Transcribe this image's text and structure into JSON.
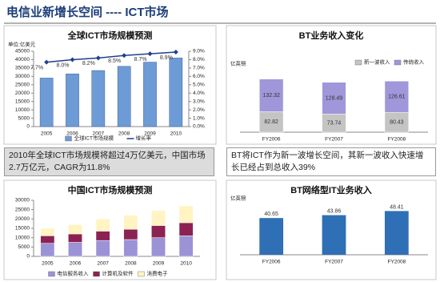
{
  "header": {
    "title": "电信业新增长空间 ---- ICT市场"
  },
  "notes": [
    "2010年全球ICT市场规模将超过4万亿美元，中国市场2.7万亿元，CAGR为11.8%",
    "BT将ICT作为新一波增长空间，其新一波收入快速增长已经占到总收入39%"
  ],
  "chart_data": [
    {
      "type": "combo",
      "title": "全球ICT市场规模预测",
      "y_label": "单位:亿美元",
      "categories": [
        "2005",
        "2006",
        "2007",
        "2008",
        "2009",
        "2010"
      ],
      "series": [
        {
          "name": "全球ICT市场规模",
          "color": "#6d9bd6",
          "values": [
            29000,
            31500,
            33500,
            36000,
            38500,
            41000
          ]
        },
        {
          "name": "增长率",
          "color": "#1f3f8f",
          "axis": "y2",
          "values": [
            7.7,
            8.0,
            8.2,
            8.5,
            8.7,
            8.9
          ],
          "value_labels": [
            "7.7%",
            "8.0%",
            "8.2%",
            "8.5%",
            "8.7%",
            "8.9%"
          ]
        }
      ],
      "ylim": [
        0,
        45000
      ],
      "yticks": [
        0,
        5000,
        10000,
        15000,
        20000,
        25000,
        30000,
        35000,
        40000,
        45000
      ],
      "y2lim": [
        0,
        9
      ],
      "y2ticks": [
        {
          "value": 0,
          "label": "0.0%"
        },
        {
          "value": 1,
          "label": "1.0%"
        },
        {
          "value": 2,
          "label": "2.0%"
        },
        {
          "value": 3,
          "label": "3.0%"
        },
        {
          "value": 4,
          "label": "4.0%"
        },
        {
          "value": 5,
          "label": "5.0%"
        },
        {
          "value": 6,
          "label": "6.0%"
        },
        {
          "value": 7,
          "label": "7.0%"
        },
        {
          "value": 8,
          "label": "8.0%"
        },
        {
          "value": 9,
          "label": "9.0%"
        }
      ],
      "legend": "bottom"
    },
    {
      "type": "stacked_bar",
      "title": "BT业务收入变化",
      "y_label": "亿英镑",
      "categories": [
        "FY2006",
        "FY2007",
        "FY2008"
      ],
      "series": [
        {
          "name": "新一波收入",
          "color": "#c4c4c4",
          "values": [
            82.82,
            73.74,
            80.43
          ]
        },
        {
          "name": "传统收入",
          "color": "#9f97d9",
          "values": [
            132.32,
            128.49,
            126.61
          ]
        }
      ],
      "ylim": [
        0,
        250
      ],
      "legend": "top-right"
    },
    {
      "type": "stacked_bar",
      "title": "中国ICT市场规模预测",
      "categories": [
        "2005",
        "2006",
        "2007",
        "2008",
        "2009",
        "2010"
      ],
      "series": [
        {
          "name": "电信服务收入",
          "color": "#9b93d6",
          "values": [
            7000,
            7500,
            8500,
            9000,
            10000,
            11000
          ]
        },
        {
          "name": "计算机及软件",
          "color": "#8b2252",
          "values": [
            4000,
            4500,
            5000,
            5500,
            6500,
            7000
          ]
        },
        {
          "name": "消费电子",
          "color": "#fff4c2",
          "values": [
            4000,
            5000,
            6500,
            7500,
            8000,
            9000
          ]
        }
      ],
      "ylim": [
        0,
        30000
      ],
      "yticks": [
        0,
        5000,
        10000,
        15000,
        20000,
        25000,
        30000
      ],
      "legend": "bottom"
    },
    {
      "type": "bar",
      "title": "BT网络型IT业务收入",
      "y_label": "亿英镑",
      "categories": [
        "FY2006",
        "FY2007",
        "FY2008"
      ],
      "values": [
        40.65,
        43.86,
        48.41
      ],
      "color": "#2f6fb5",
      "ylim": [
        0,
        55
      ]
    }
  ]
}
